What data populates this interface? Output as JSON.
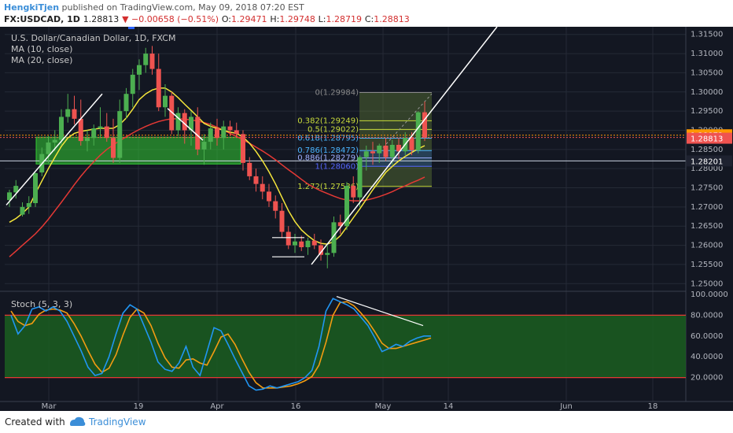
{
  "header": {
    "author": "HengkiTjen",
    "published_text": "published on TradingView.com, May 09, 2018 07:20 EST",
    "symbol": "FX:USDCAD, 1D",
    "last": "1.28813",
    "change": "▼ −0.00658 (−0.51%)",
    "o_label": "O:",
    "o_value": "1.29471",
    "h_label": "H:",
    "h_value": "1.29748",
    "l_label": "L:",
    "l_value": "1.28719",
    "c_label": "C:",
    "c_value": "1.28813"
  },
  "legend": {
    "title": "U.S. Dollar/Canadian Dollar, 1D, FXCM",
    "ma10": "MA (10, close)",
    "ma20": "MA (20, close)",
    "stoch": "Stoch (5, 3, 3)"
  },
  "price_badges": {
    "ma": "1.28872",
    "close": "1.28813",
    "line": "1.28201"
  },
  "fib_labels": {
    "f0": "0(1.29984)",
    "f382": "0.382(1.29249)",
    "f5": "0.5(1.29022)",
    "f618": "0.618(1.28795)",
    "f786": "0.786(1.28472)",
    "f886": "0.886(1.28279)",
    "f1": "1(1.28060)",
    "f1272": "1.272(1.27536)"
  },
  "footer": {
    "created_with": "Created with",
    "brand": "TradingView"
  },
  "colors": {
    "background": "#131722",
    "up": "#4caf50",
    "down": "#ef5350",
    "ma10": "#f5e63b",
    "ma20": "#e53935",
    "stoch_k": "#2196f3",
    "stoch_d": "#f39c12",
    "band": "#1b5e20",
    "zone": "#33cc33"
  },
  "chart_data": [
    {
      "type": "candlestick",
      "title": "U.S. Dollar/Canadian Dollar, 1D, FXCM",
      "x_ticks": [
        "Mar",
        "19",
        "Apr",
        "16",
        "May",
        "14",
        "Jun",
        "18"
      ],
      "y_ticks": [
        "1.31500",
        "1.31000",
        "1.30500",
        "1.30000",
        "1.29500",
        "1.29000",
        "1.28500",
        "1.28000",
        "1.27500",
        "1.27000",
        "1.26500",
        "1.26000",
        "1.25500",
        "1.25000"
      ],
      "ylim": [
        1.248,
        1.317
      ],
      "candles": [
        [
          1.2718,
          1.2745,
          1.27,
          1.2738
        ],
        [
          1.2738,
          1.277,
          1.2722,
          1.2755
        ],
        [
          1.268,
          1.2712,
          1.2675,
          1.27
        ],
        [
          1.27,
          1.2728,
          1.2682,
          1.271
        ],
        [
          1.271,
          1.279,
          1.27,
          1.2788
        ],
        [
          1.279,
          1.2855,
          1.278,
          1.2838
        ],
        [
          1.2838,
          1.2885,
          1.2815,
          1.2868
        ],
        [
          1.2868,
          1.29,
          1.2845,
          1.2875
        ],
        [
          1.2875,
          1.2955,
          1.286,
          1.2935
        ],
        [
          1.2935,
          1.2995,
          1.292,
          1.2955
        ],
        [
          1.2955,
          1.299,
          1.2915,
          1.293
        ],
        [
          1.293,
          1.298,
          1.286,
          1.2872
        ],
        [
          1.2872,
          1.29,
          1.2845,
          1.288
        ],
        [
          1.288,
          1.2915,
          1.286,
          1.2905
        ],
        [
          1.2905,
          1.296,
          1.288,
          1.291
        ],
        [
          1.291,
          1.2945,
          1.287,
          1.288
        ],
        [
          1.288,
          1.293,
          1.2815,
          1.2828
        ],
        [
          1.2828,
          1.298,
          1.2815,
          1.295
        ],
        [
          1.295,
          1.301,
          1.293,
          1.2995
        ],
        [
          1.2995,
          1.306,
          1.296,
          1.3045
        ],
        [
          1.3045,
          1.3085,
          1.3005,
          1.307
        ],
        [
          1.307,
          1.3115,
          1.305,
          1.31
        ],
        [
          1.31,
          1.312,
          1.3045,
          1.306
        ],
        [
          1.306,
          1.31,
          1.295,
          1.296
        ],
        [
          1.296,
          1.302,
          1.2935,
          1.299
        ],
        [
          1.299,
          1.3,
          1.289,
          1.29
        ],
        [
          1.29,
          1.296,
          1.2885,
          1.2945
        ],
        [
          1.2945,
          1.2955,
          1.2865,
          1.29
        ],
        [
          1.29,
          1.295,
          1.286,
          1.2935
        ],
        [
          1.2935,
          1.296,
          1.2835,
          1.285
        ],
        [
          1.285,
          1.289,
          1.281,
          1.287
        ],
        [
          1.287,
          1.292,
          1.285,
          1.2905
        ],
        [
          1.2905,
          1.293,
          1.286,
          1.288
        ],
        [
          1.288,
          1.2925,
          1.285,
          1.291
        ],
        [
          1.291,
          1.2925,
          1.2885,
          1.29
        ],
        [
          1.29,
          1.292,
          1.288,
          1.289
        ],
        [
          1.289,
          1.29,
          1.2795,
          1.2815
        ],
        [
          1.2815,
          1.283,
          1.277,
          1.278
        ],
        [
          1.278,
          1.28,
          1.274,
          1.276
        ],
        [
          1.276,
          1.278,
          1.272,
          1.274
        ],
        [
          1.274,
          1.276,
          1.27,
          1.2715
        ],
        [
          1.2715,
          1.273,
          1.267,
          1.269
        ],
        [
          1.269,
          1.271,
          1.262,
          1.2635
        ],
        [
          1.2635,
          1.265,
          1.259,
          1.26
        ],
        [
          1.26,
          1.263,
          1.258,
          1.261
        ],
        [
          1.261,
          1.2625,
          1.2585,
          1.2595
        ],
        [
          1.2595,
          1.262,
          1.2575,
          1.2612
        ],
        [
          1.2612,
          1.263,
          1.259,
          1.26
        ],
        [
          1.26,
          1.2615,
          1.256,
          1.2575
        ],
        [
          1.2575,
          1.26,
          1.254,
          1.258
        ],
        [
          1.258,
          1.2675,
          1.257,
          1.266
        ],
        [
          1.266,
          1.268,
          1.263,
          1.265
        ],
        [
          1.265,
          1.2765,
          1.264,
          1.2755
        ],
        [
          1.2755,
          1.278,
          1.271,
          1.2725
        ],
        [
          1.2725,
          1.2835,
          1.27,
          1.283
        ],
        [
          1.283,
          1.286,
          1.2795,
          1.2845
        ],
        [
          1.2845,
          1.287,
          1.281,
          1.284
        ],
        [
          1.284,
          1.2865,
          1.2815,
          1.286
        ],
        [
          1.286,
          1.288,
          1.282,
          1.283
        ],
        [
          1.283,
          1.2875,
          1.281,
          1.2862
        ],
        [
          1.2862,
          1.288,
          1.2825,
          1.2845
        ],
        [
          1.2845,
          1.2895,
          1.2835,
          1.288
        ],
        [
          1.288,
          1.2895,
          1.2835,
          1.2848
        ],
        [
          1.2848,
          1.295,
          1.284,
          1.2947
        ],
        [
          1.2947,
          1.2975,
          1.2872,
          1.2881
        ]
      ],
      "ma10": [
        1.266,
        1.267,
        1.2683,
        1.27,
        1.2735,
        1.2768,
        1.28,
        1.283,
        1.2858,
        1.288,
        1.2892,
        1.2897,
        1.29,
        1.2903,
        1.2905,
        1.2905,
        1.2905,
        1.2915,
        1.2932,
        1.2955,
        1.298,
        1.2995,
        1.3005,
        1.301,
        1.301,
        1.3,
        1.2985,
        1.2968,
        1.2952,
        1.2935,
        1.2918,
        1.291,
        1.2905,
        1.29,
        1.2895,
        1.2892,
        1.2882,
        1.2866,
        1.2845,
        1.282,
        1.2792,
        1.276,
        1.2725,
        1.269,
        1.2662,
        1.264,
        1.2625,
        1.2612,
        1.2605,
        1.2603,
        1.261,
        1.2625,
        1.2648,
        1.2672,
        1.2695,
        1.272,
        1.2745,
        1.2768,
        1.279,
        1.2806,
        1.282,
        1.2832,
        1.2842,
        1.2852,
        1.286
      ],
      "ma20": [
        1.257,
        1.2585,
        1.26,
        1.2615,
        1.263,
        1.2648,
        1.2668,
        1.269,
        1.2712,
        1.2735,
        1.2758,
        1.278,
        1.28,
        1.2818,
        1.2835,
        1.285,
        1.2862,
        1.2873,
        1.2883,
        1.2893,
        1.2902,
        1.291,
        1.2917,
        1.2923,
        1.2927,
        1.293,
        1.293,
        1.2929,
        1.2927,
        1.2924,
        1.292,
        1.2915,
        1.2908,
        1.29,
        1.2892,
        1.2884,
        1.2875,
        1.2866,
        1.2856,
        1.2846,
        1.2835,
        1.2823,
        1.281,
        1.2797,
        1.2785,
        1.2772,
        1.276,
        1.275,
        1.2742,
        1.2735,
        1.2728,
        1.2722,
        1.2718,
        1.2716,
        1.2716,
        1.2718,
        1.2722,
        1.2727,
        1.2733,
        1.274,
        1.2748,
        1.2755,
        1.2763,
        1.277,
        1.2778
      ],
      "fib_levels": [
        1.29984,
        1.29249,
        1.29022,
        1.28795,
        1.28472,
        1.28279,
        1.2806,
        1.27536
      ],
      "horizontal_line": 1.28201,
      "ma_value": 1.28872,
      "close": 1.28813
    },
    {
      "type": "line",
      "title": "Stoch (5, 3, 3)",
      "y_ticks": [
        "100.0000",
        "80.0000",
        "60.0000",
        "40.0000",
        "20.0000"
      ],
      "ylim": [
        0,
        100
      ],
      "band": [
        20,
        80
      ],
      "series": [
        {
          "name": "%K",
          "values": [
            80,
            62,
            70,
            86,
            88,
            84,
            88,
            84,
            74,
            60,
            46,
            30,
            22,
            24,
            40,
            62,
            82,
            90,
            86,
            70,
            54,
            35,
            28,
            26,
            34,
            50,
            30,
            22,
            45,
            68,
            65,
            52,
            38,
            25,
            12,
            8,
            9,
            12,
            10,
            12,
            14,
            16,
            20,
            27,
            50,
            84,
            96,
            93,
            90,
            86,
            78,
            70,
            58,
            45,
            48,
            52,
            50,
            55,
            58,
            60,
            60
          ]
        },
        {
          "name": "%D",
          "values": [
            84,
            74,
            70,
            72,
            81,
            85,
            86,
            85,
            82,
            72,
            60,
            46,
            33,
            25,
            29,
            42,
            61,
            78,
            86,
            82,
            70,
            53,
            39,
            30,
            29,
            37,
            38,
            34,
            32,
            45,
            59,
            62,
            52,
            38,
            25,
            15,
            10,
            10,
            10,
            11,
            12,
            14,
            17,
            21,
            32,
            54,
            80,
            92,
            93,
            89,
            82,
            74,
            64,
            53,
            48,
            48,
            50,
            52,
            54,
            56,
            58
          ]
        }
      ]
    }
  ]
}
